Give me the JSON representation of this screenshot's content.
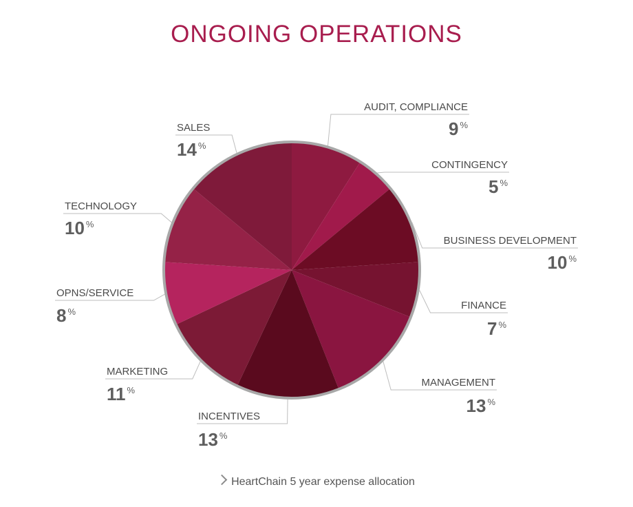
{
  "chart_data": {
    "type": "pie",
    "title": "ONGOING OPERATIONS",
    "categories": [
      "AUDIT, COMPLIANCE",
      "CONTINGENCY",
      "BUSINESS DEVELOPMENT",
      "FINANCE",
      "MANAGEMENT",
      "INCENTIVES",
      "MARKETING",
      "OPNS/SERVICE",
      "TECHNOLOGY",
      "SALES"
    ],
    "values": [
      9,
      5,
      10,
      7,
      13,
      13,
      11,
      8,
      10,
      14
    ],
    "value_labels": [
      "9",
      "5",
      "10",
      "7",
      "13",
      "13",
      "11",
      "8",
      "10",
      "14"
    ],
    "unit": "%",
    "colors": [
      "#8e1a40",
      "#a11a4b",
      "#6c0c24",
      "#761330",
      "#8a1540",
      "#5a0a1e",
      "#7c1a36",
      "#b5245e",
      "#952247",
      "#7f1a3a"
    ],
    "legend": "none",
    "caption": "HeartChain 5 year expense allocation"
  }
}
